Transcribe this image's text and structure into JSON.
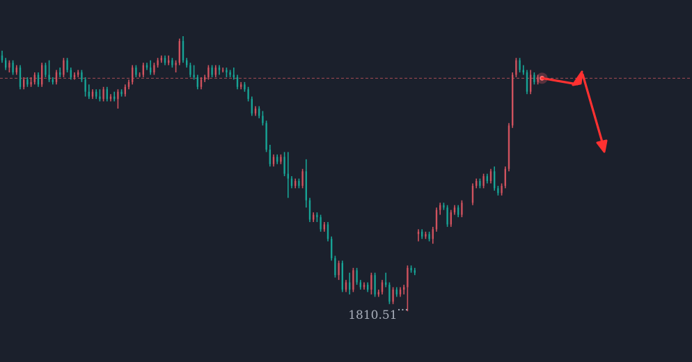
{
  "colors": {
    "background": "#1b202c",
    "up": "#d0525e",
    "down": "#17a496",
    "current_price_line": "#c0545c",
    "arrow": "#ff3131",
    "label_text": "#aab0bc"
  },
  "chart_data": {
    "type": "candlestick",
    "title": "",
    "xlabel": "",
    "ylabel": "",
    "grid": false,
    "legend": "none",
    "ylim": [
      1800,
      1875
    ],
    "reference_line": {
      "value": 1858.8,
      "style": "dashed"
    },
    "low_marker": {
      "value": 1810.51,
      "label": "1810.51",
      "suffix": "···"
    },
    "candles": [
      {
        "o": 1863.5,
        "h": 1864.5,
        "l": 1862.0,
        "c": 1862.5
      },
      {
        "o": 1862.5,
        "h": 1863.0,
        "l": 1860.5,
        "c": 1861.0
      },
      {
        "o": 1861.0,
        "h": 1862.5,
        "l": 1860.0,
        "c": 1862.0
      },
      {
        "o": 1862.0,
        "h": 1862.5,
        "l": 1859.5,
        "c": 1860.0
      },
      {
        "o": 1860.0,
        "h": 1861.5,
        "l": 1859.5,
        "c": 1861.0
      },
      {
        "o": 1861.0,
        "h": 1861.5,
        "l": 1856.5,
        "c": 1857.0
      },
      {
        "o": 1857.0,
        "h": 1859.0,
        "l": 1856.5,
        "c": 1858.5
      },
      {
        "o": 1858.5,
        "h": 1859.0,
        "l": 1857.0,
        "c": 1857.5
      },
      {
        "o": 1857.5,
        "h": 1859.0,
        "l": 1857.0,
        "c": 1858.0
      },
      {
        "o": 1858.0,
        "h": 1860.0,
        "l": 1857.5,
        "c": 1859.5
      },
      {
        "o": 1859.5,
        "h": 1860.0,
        "l": 1857.0,
        "c": 1857.5
      },
      {
        "o": 1857.5,
        "h": 1862.0,
        "l": 1857.0,
        "c": 1861.5
      },
      {
        "o": 1861.5,
        "h": 1862.0,
        "l": 1859.0,
        "c": 1859.5
      },
      {
        "o": 1859.5,
        "h": 1862.5,
        "l": 1858.0,
        "c": 1858.5
      },
      {
        "o": 1858.5,
        "h": 1859.0,
        "l": 1857.5,
        "c": 1858.0
      },
      {
        "o": 1858.0,
        "h": 1860.5,
        "l": 1857.5,
        "c": 1860.0
      },
      {
        "o": 1860.0,
        "h": 1861.0,
        "l": 1859.0,
        "c": 1859.5
      },
      {
        "o": 1859.5,
        "h": 1863.0,
        "l": 1859.0,
        "c": 1862.5
      },
      {
        "o": 1862.5,
        "h": 1863.0,
        "l": 1860.0,
        "c": 1860.5
      },
      {
        "o": 1860.5,
        "h": 1861.0,
        "l": 1858.5,
        "c": 1859.0
      },
      {
        "o": 1859.0,
        "h": 1860.0,
        "l": 1858.5,
        "c": 1859.5
      },
      {
        "o": 1859.5,
        "h": 1860.5,
        "l": 1859.0,
        "c": 1860.0
      },
      {
        "o": 1860.0,
        "h": 1860.5,
        "l": 1858.0,
        "c": 1858.5
      },
      {
        "o": 1858.5,
        "h": 1859.0,
        "l": 1855.0,
        "c": 1856.0
      },
      {
        "o": 1856.0,
        "h": 1857.5,
        "l": 1854.5,
        "c": 1855.0
      },
      {
        "o": 1855.0,
        "h": 1856.5,
        "l": 1854.5,
        "c": 1856.0
      },
      {
        "o": 1856.0,
        "h": 1856.5,
        "l": 1854.5,
        "c": 1855.0
      },
      {
        "o": 1855.0,
        "h": 1856.5,
        "l": 1854.0,
        "c": 1854.5
      },
      {
        "o": 1854.5,
        "h": 1857.0,
        "l": 1854.0,
        "c": 1856.5
      },
      {
        "o": 1856.5,
        "h": 1857.0,
        "l": 1854.0,
        "c": 1854.5
      },
      {
        "o": 1854.5,
        "h": 1855.5,
        "l": 1854.0,
        "c": 1855.0
      },
      {
        "o": 1855.0,
        "h": 1856.0,
        "l": 1854.0,
        "c": 1854.5
      },
      {
        "o": 1854.5,
        "h": 1856.5,
        "l": 1852.5,
        "c": 1856.0
      },
      {
        "o": 1856.0,
        "h": 1856.5,
        "l": 1855.0,
        "c": 1855.5
      },
      {
        "o": 1855.5,
        "h": 1857.5,
        "l": 1855.0,
        "c": 1857.0
      },
      {
        "o": 1857.0,
        "h": 1858.5,
        "l": 1856.5,
        "c": 1858.0
      },
      {
        "o": 1858.0,
        "h": 1861.5,
        "l": 1857.5,
        "c": 1861.0
      },
      {
        "o": 1861.0,
        "h": 1861.5,
        "l": 1859.0,
        "c": 1859.5
      },
      {
        "o": 1859.5,
        "h": 1860.0,
        "l": 1859.0,
        "c": 1859.5
      },
      {
        "o": 1859.5,
        "h": 1862.0,
        "l": 1859.0,
        "c": 1861.5
      },
      {
        "o": 1861.5,
        "h": 1862.0,
        "l": 1860.5,
        "c": 1861.0
      },
      {
        "o": 1861.0,
        "h": 1862.5,
        "l": 1859.5,
        "c": 1860.0
      },
      {
        "o": 1860.0,
        "h": 1862.0,
        "l": 1859.5,
        "c": 1861.5
      },
      {
        "o": 1861.5,
        "h": 1863.0,
        "l": 1861.0,
        "c": 1862.5
      },
      {
        "o": 1862.5,
        "h": 1863.5,
        "l": 1862.0,
        "c": 1863.0
      },
      {
        "o": 1863.0,
        "h": 1863.5,
        "l": 1861.5,
        "c": 1862.0
      },
      {
        "o": 1862.0,
        "h": 1863.5,
        "l": 1861.5,
        "c": 1862.5
      },
      {
        "o": 1862.5,
        "h": 1863.0,
        "l": 1861.0,
        "c": 1861.5
      },
      {
        "o": 1861.5,
        "h": 1862.5,
        "l": 1860.0,
        "c": 1862.0
      },
      {
        "o": 1862.0,
        "h": 1867.0,
        "l": 1861.5,
        "c": 1866.5
      },
      {
        "o": 1866.5,
        "h": 1867.5,
        "l": 1862.0,
        "c": 1862.5
      },
      {
        "o": 1862.5,
        "h": 1863.0,
        "l": 1861.0,
        "c": 1861.5
      },
      {
        "o": 1861.5,
        "h": 1862.0,
        "l": 1859.0,
        "c": 1859.5
      },
      {
        "o": 1859.5,
        "h": 1861.5,
        "l": 1858.5,
        "c": 1859.0
      },
      {
        "o": 1859.0,
        "h": 1859.5,
        "l": 1856.5,
        "c": 1857.0
      },
      {
        "o": 1857.0,
        "h": 1859.0,
        "l": 1856.5,
        "c": 1858.5
      },
      {
        "o": 1858.5,
        "h": 1859.5,
        "l": 1858.0,
        "c": 1859.0
      },
      {
        "o": 1859.0,
        "h": 1861.5,
        "l": 1858.5,
        "c": 1861.0
      },
      {
        "o": 1861.0,
        "h": 1861.5,
        "l": 1859.0,
        "c": 1859.5
      },
      {
        "o": 1859.5,
        "h": 1861.5,
        "l": 1859.0,
        "c": 1861.0
      },
      {
        "o": 1861.0,
        "h": 1861.5,
        "l": 1859.5,
        "c": 1860.5
      },
      {
        "o": 1860.5,
        "h": 1861.0,
        "l": 1860.0,
        "c": 1860.5
      },
      {
        "o": 1860.5,
        "h": 1861.0,
        "l": 1859.0,
        "c": 1860.0
      },
      {
        "o": 1860.0,
        "h": 1860.5,
        "l": 1859.0,
        "c": 1859.5
      },
      {
        "o": 1859.5,
        "h": 1861.0,
        "l": 1858.5,
        "c": 1859.0
      },
      {
        "o": 1859.0,
        "h": 1859.5,
        "l": 1856.5,
        "c": 1857.0
      },
      {
        "o": 1857.0,
        "h": 1858.0,
        "l": 1856.5,
        "c": 1857.5
      },
      {
        "o": 1857.5,
        "h": 1858.0,
        "l": 1856.0,
        "c": 1856.5
      },
      {
        "o": 1856.5,
        "h": 1857.0,
        "l": 1854.0,
        "c": 1854.5
      },
      {
        "o": 1854.5,
        "h": 1855.0,
        "l": 1851.0,
        "c": 1851.5
      },
      {
        "o": 1851.5,
        "h": 1853.0,
        "l": 1851.0,
        "c": 1852.5
      },
      {
        "o": 1852.5,
        "h": 1853.0,
        "l": 1850.5,
        "c": 1851.0
      },
      {
        "o": 1851.0,
        "h": 1852.0,
        "l": 1849.0,
        "c": 1849.5
      },
      {
        "o": 1849.5,
        "h": 1850.0,
        "l": 1843.5,
        "c": 1844.0
      },
      {
        "o": 1844.0,
        "h": 1845.0,
        "l": 1840.5,
        "c": 1841.0
      },
      {
        "o": 1841.0,
        "h": 1843.0,
        "l": 1840.5,
        "c": 1842.5
      },
      {
        "o": 1842.5,
        "h": 1843.0,
        "l": 1841.0,
        "c": 1841.5
      },
      {
        "o": 1841.5,
        "h": 1843.0,
        "l": 1841.0,
        "c": 1842.5
      },
      {
        "o": 1842.5,
        "h": 1843.5,
        "l": 1838.5,
        "c": 1839.0
      },
      {
        "o": 1839.0,
        "h": 1843.5,
        "l": 1834.0,
        "c": 1838.0
      },
      {
        "o": 1838.0,
        "h": 1838.5,
        "l": 1836.0,
        "c": 1836.5
      },
      {
        "o": 1836.5,
        "h": 1838.0,
        "l": 1836.0,
        "c": 1837.5
      },
      {
        "o": 1837.5,
        "h": 1838.0,
        "l": 1836.0,
        "c": 1836.5
      },
      {
        "o": 1836.5,
        "h": 1840.0,
        "l": 1836.0,
        "c": 1839.5
      },
      {
        "o": 1839.5,
        "h": 1842.0,
        "l": 1832.0,
        "c": 1833.5
      },
      {
        "o": 1833.5,
        "h": 1834.0,
        "l": 1829.0,
        "c": 1829.5
      },
      {
        "o": 1829.5,
        "h": 1831.0,
        "l": 1829.0,
        "c": 1830.5
      },
      {
        "o": 1830.5,
        "h": 1831.0,
        "l": 1829.0,
        "c": 1830.0
      },
      {
        "o": 1830.0,
        "h": 1830.5,
        "l": 1827.0,
        "c": 1827.5
      },
      {
        "o": 1827.5,
        "h": 1829.0,
        "l": 1827.0,
        "c": 1828.5
      },
      {
        "o": 1828.5,
        "h": 1829.0,
        "l": 1825.0,
        "c": 1825.5
      },
      {
        "o": 1825.5,
        "h": 1826.0,
        "l": 1821.0,
        "c": 1821.5
      },
      {
        "o": 1821.5,
        "h": 1822.0,
        "l": 1817.5,
        "c": 1818.0
      },
      {
        "o": 1818.0,
        "h": 1821.0,
        "l": 1817.0,
        "c": 1820.5
      },
      {
        "o": 1820.5,
        "h": 1821.0,
        "l": 1814.5,
        "c": 1815.0
      },
      {
        "o": 1815.0,
        "h": 1817.0,
        "l": 1814.5,
        "c": 1816.5
      },
      {
        "o": 1816.5,
        "h": 1818.5,
        "l": 1814.0,
        "c": 1815.0
      },
      {
        "o": 1815.0,
        "h": 1819.5,
        "l": 1814.5,
        "c": 1819.0
      },
      {
        "o": 1819.0,
        "h": 1819.5,
        "l": 1816.0,
        "c": 1816.5
      },
      {
        "o": 1816.5,
        "h": 1817.0,
        "l": 1815.0,
        "c": 1815.5
      },
      {
        "o": 1815.5,
        "h": 1816.5,
        "l": 1815.0,
        "c": 1816.0
      },
      {
        "o": 1816.0,
        "h": 1816.5,
        "l": 1814.5,
        "c": 1815.0
      },
      {
        "o": 1815.0,
        "h": 1818.5,
        "l": 1814.0,
        "c": 1818.0
      },
      {
        "o": 1818.0,
        "h": 1818.5,
        "l": 1813.5,
        "c": 1814.0
      },
      {
        "o": 1814.0,
        "h": 1815.0,
        "l": 1813.5,
        "c": 1814.5
      },
      {
        "o": 1814.5,
        "h": 1817.0,
        "l": 1814.0,
        "c": 1816.5
      },
      {
        "o": 1816.5,
        "h": 1818.5,
        "l": 1815.5,
        "c": 1816.0
      },
      {
        "o": 1816.0,
        "h": 1816.5,
        "l": 1812.0,
        "c": 1812.5
      },
      {
        "o": 1812.5,
        "h": 1815.5,
        "l": 1812.0,
        "c": 1815.0
      },
      {
        "o": 1815.0,
        "h": 1815.5,
        "l": 1813.5,
        "c": 1814.0
      },
      {
        "o": 1814.0,
        "h": 1815.5,
        "l": 1813.5,
        "c": 1815.0
      },
      {
        "o": 1815.0,
        "h": 1816.0,
        "l": 1814.0,
        "c": 1815.5
      },
      {
        "o": 1815.5,
        "h": 1820.0,
        "l": 1810.51,
        "c": 1819.5
      },
      {
        "o": 1819.5,
        "h": 1820.0,
        "l": 1818.5,
        "c": 1819.0
      },
      {
        "o": 1819.0,
        "h": 1819.5,
        "l": 1818.0,
        "c": 1818.5
      },
      {
        "o": 1826.5,
        "h": 1827.5,
        "l": 1825.0,
        "c": 1827.0
      },
      {
        "o": 1827.0,
        "h": 1827.5,
        "l": 1825.5,
        "c": 1826.0
      },
      {
        "o": 1826.0,
        "h": 1827.0,
        "l": 1825.5,
        "c": 1826.5
      },
      {
        "o": 1826.5,
        "h": 1827.0,
        "l": 1825.0,
        "c": 1825.5
      },
      {
        "o": 1825.5,
        "h": 1828.0,
        "l": 1824.5,
        "c": 1827.5
      },
      {
        "o": 1827.5,
        "h": 1832.0,
        "l": 1827.0,
        "c": 1831.5
      },
      {
        "o": 1831.5,
        "h": 1833.0,
        "l": 1830.5,
        "c": 1832.5
      },
      {
        "o": 1832.5,
        "h": 1833.0,
        "l": 1831.5,
        "c": 1832.0
      },
      {
        "o": 1832.0,
        "h": 1832.5,
        "l": 1828.0,
        "c": 1828.5
      },
      {
        "o": 1828.5,
        "h": 1831.5,
        "l": 1828.0,
        "c": 1831.0
      },
      {
        "o": 1831.0,
        "h": 1832.5,
        "l": 1830.5,
        "c": 1832.0
      },
      {
        "o": 1832.0,
        "h": 1832.5,
        "l": 1830.0,
        "c": 1830.5
      },
      {
        "o": 1830.5,
        "h": 1833.5,
        "l": 1830.0,
        "c": 1833.0
      },
      {
        "o": 1833.0,
        "h": 1837.0,
        "l": 1832.5,
        "c": 1836.5
      },
      {
        "o": 1836.5,
        "h": 1838.0,
        "l": 1836.0,
        "c": 1837.5
      },
      {
        "o": 1837.5,
        "h": 1838.0,
        "l": 1836.0,
        "c": 1836.5
      },
      {
        "o": 1836.5,
        "h": 1839.0,
        "l": 1836.0,
        "c": 1838.5
      },
      {
        "o": 1838.5,
        "h": 1839.0,
        "l": 1837.0,
        "c": 1837.5
      },
      {
        "o": 1837.5,
        "h": 1840.0,
        "l": 1837.0,
        "c": 1839.5
      },
      {
        "o": 1839.5,
        "h": 1840.5,
        "l": 1835.5,
        "c": 1836.0
      },
      {
        "o": 1836.0,
        "h": 1836.5,
        "l": 1834.5,
        "c": 1835.0
      },
      {
        "o": 1835.0,
        "h": 1837.0,
        "l": 1834.5,
        "c": 1836.5
      },
      {
        "o": 1836.5,
        "h": 1840.5,
        "l": 1836.0,
        "c": 1840.0
      },
      {
        "o": 1840.0,
        "h": 1849.5,
        "l": 1839.5,
        "c": 1849.0
      },
      {
        "o": 1849.0,
        "h": 1860.0,
        "l": 1848.5,
        "c": 1859.5
      },
      {
        "o": 1859.5,
        "h": 1863.0,
        "l": 1859.0,
        "c": 1862.5
      },
      {
        "o": 1862.5,
        "h": 1863.0,
        "l": 1860.0,
        "c": 1860.5
      },
      {
        "o": 1860.5,
        "h": 1861.5,
        "l": 1859.5,
        "c": 1860.0
      },
      {
        "o": 1860.0,
        "h": 1860.5,
        "l": 1855.5,
        "c": 1856.0
      },
      {
        "o": 1856.0,
        "h": 1860.5,
        "l": 1855.5,
        "c": 1859.5
      },
      {
        "o": 1859.5,
        "h": 1860.0,
        "l": 1857.5,
        "c": 1858.0
      },
      {
        "o": 1858.0,
        "h": 1859.5,
        "l": 1857.5,
        "c": 1859.0
      }
    ]
  }
}
